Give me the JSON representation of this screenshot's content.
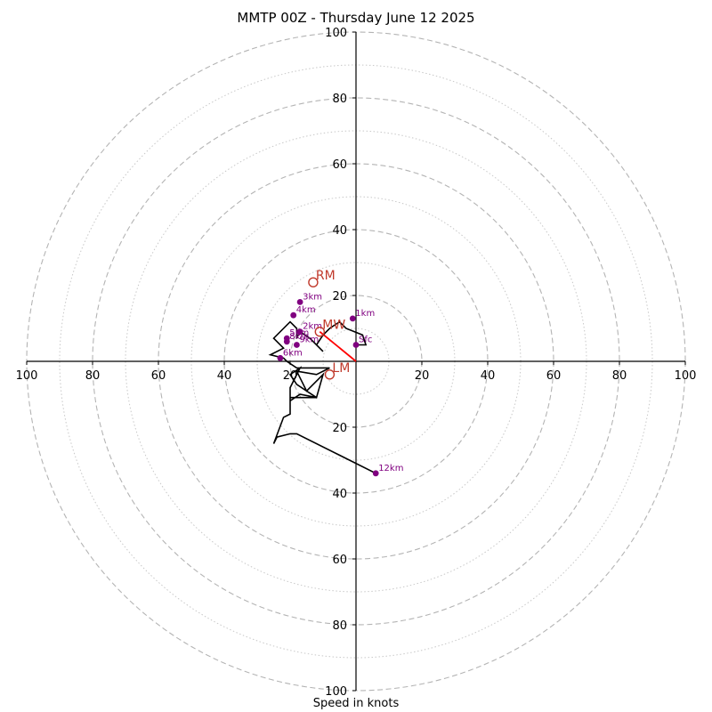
{
  "chart_data": {
    "type": "line",
    "title": "MMTP 00Z - Thursday June 12 2025",
    "xlabel": "Speed in knots",
    "range": [
      -100,
      100
    ],
    "rings_major": [
      20,
      40,
      60,
      80,
      100
    ],
    "rings_minor": [
      10,
      30,
      50,
      70,
      90
    ],
    "tick_labels": [
      "100",
      "80",
      "60",
      "40",
      "20",
      "20",
      "40",
      "60",
      "80",
      "100"
    ],
    "y_tick_labels": [
      "100",
      "80",
      "60",
      "40",
      "20",
      "20",
      "40",
      "60",
      "80",
      "100"
    ],
    "grid": true,
    "hodograph": {
      "color": "#000000",
      "points": [
        [
          0,
          5
        ],
        [
          3,
          5
        ],
        [
          2,
          8
        ],
        [
          -3,
          10
        ],
        [
          -5,
          12
        ],
        [
          -8,
          10
        ],
        [
          -10,
          8
        ],
        [
          -12,
          5
        ],
        [
          -10,
          3
        ],
        [
          -14,
          7
        ],
        [
          -17,
          9
        ],
        [
          -18,
          7
        ],
        [
          -18,
          10
        ],
        [
          -20,
          12
        ],
        [
          -25,
          7
        ],
        [
          -22,
          4
        ],
        [
          -26,
          2
        ],
        [
          -22,
          1
        ],
        [
          -21,
          0
        ],
        [
          -18,
          -2
        ],
        [
          -8,
          -2
        ],
        [
          -12,
          -4
        ],
        [
          -18,
          -3
        ],
        [
          -15,
          -9
        ],
        [
          -10,
          -4
        ],
        [
          -12,
          -11
        ],
        [
          -18,
          -7
        ],
        [
          -20,
          -4
        ],
        [
          -17,
          -2
        ],
        [
          -20,
          -8
        ],
        [
          -20,
          -12
        ],
        [
          -17,
          -10
        ],
        [
          -12,
          -11
        ],
        [
          -20,
          -11
        ],
        [
          -20,
          -16
        ],
        [
          -22,
          -17
        ],
        [
          -25,
          -25
        ],
        [
          -24,
          -23
        ],
        [
          -20,
          -22
        ],
        [
          -18,
          -22
        ],
        [
          6,
          -34
        ]
      ]
    },
    "labeled_points": [
      {
        "label": "Sfc",
        "x": 0,
        "y": 5
      },
      {
        "label": "1km",
        "x": -1,
        "y": 13
      },
      {
        "label": "2km",
        "x": -17,
        "y": 9
      },
      {
        "label": "3km",
        "x": -17,
        "y": 18
      },
      {
        "label": "4km",
        "x": -19,
        "y": 14
      },
      {
        "label": "5km",
        "x": -21,
        "y": 7
      },
      {
        "label": "6km",
        "x": -23,
        "y": 1
      },
      {
        "label": "8km",
        "x": -21,
        "y": 6
      },
      {
        "label": "9km",
        "x": -18,
        "y": 5
      },
      {
        "label": "12km",
        "x": 6,
        "y": -34
      }
    ],
    "point_color": "#800080",
    "storm_motion": [
      {
        "label": "RM",
        "x": -13,
        "y": 24
      },
      {
        "label": "MW",
        "x": -11,
        "y": 9
      },
      {
        "label": "LM",
        "x": -8,
        "y": -4
      }
    ],
    "storm_color": "#c0392b",
    "mean_wind_vector": {
      "from": [
        0,
        0
      ],
      "to": [
        -11,
        9
      ],
      "color": "#ff0000"
    }
  }
}
